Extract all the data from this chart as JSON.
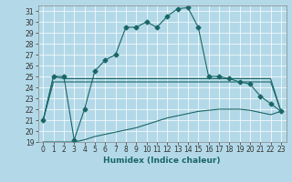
{
  "xlabel": "Humidex (Indice chaleur)",
  "ylabel": "",
  "bg_color": "#b3d9e8",
  "grid_color": "#ffffff",
  "line_color": "#1a6666",
  "xlim": [
    -0.5,
    23.5
  ],
  "ylim": [
    19,
    31.5
  ],
  "yticks": [
    19,
    20,
    21,
    22,
    23,
    24,
    25,
    26,
    27,
    28,
    29,
    30,
    31
  ],
  "xticks": [
    0,
    1,
    2,
    3,
    4,
    5,
    6,
    7,
    8,
    9,
    10,
    11,
    12,
    13,
    14,
    15,
    16,
    17,
    18,
    19,
    20,
    21,
    22,
    23
  ],
  "series": [
    {
      "x": [
        0,
        1,
        2,
        3,
        4,
        5,
        6,
        7,
        8,
        9,
        10,
        11,
        12,
        13,
        14,
        15,
        16,
        17,
        18,
        19,
        20,
        21,
        22,
        23
      ],
      "y": [
        21.0,
        25.0,
        25.0,
        19.2,
        22.0,
        25.5,
        26.5,
        27.0,
        29.5,
        29.5,
        30.0,
        29.5,
        30.5,
        31.2,
        31.3,
        29.5,
        25.0,
        25.0,
        24.8,
        24.5,
        24.3,
        23.2,
        22.5,
        21.8
      ],
      "marker": "D",
      "markersize": 2.5
    },
    {
      "x": [
        0,
        1,
        2,
        3,
        4,
        5,
        6,
        7,
        8,
        9,
        10,
        11,
        12,
        13,
        14,
        15,
        16,
        17,
        18,
        19,
        20,
        21,
        22,
        23
      ],
      "y": [
        21.0,
        25.0,
        24.8,
        24.8,
        24.8,
        24.8,
        24.8,
        24.8,
        24.8,
        24.8,
        24.8,
        24.8,
        24.8,
        24.8,
        24.8,
        24.8,
        24.8,
        24.8,
        24.8,
        24.8,
        24.8,
        24.8,
        24.8,
        21.8
      ],
      "marker": null,
      "markersize": 0
    },
    {
      "x": [
        0,
        1,
        2,
        3,
        4,
        5,
        6,
        7,
        8,
        9,
        10,
        11,
        12,
        13,
        14,
        15,
        16,
        17,
        18,
        19,
        20,
        21,
        22,
        23
      ],
      "y": [
        21.0,
        24.5,
        24.5,
        24.5,
        24.5,
        24.5,
        24.5,
        24.5,
        24.5,
        24.5,
        24.5,
        24.5,
        24.5,
        24.5,
        24.5,
        24.5,
        24.5,
        24.5,
        24.5,
        24.5,
        24.5,
        24.5,
        24.5,
        21.8
      ],
      "marker": null,
      "markersize": 0
    },
    {
      "x": [
        0,
        1,
        2,
        3,
        4,
        5,
        6,
        7,
        8,
        9,
        10,
        11,
        12,
        13,
        14,
        15,
        16,
        17,
        18,
        19,
        20,
        21,
        22,
        23
      ],
      "y": [
        19.0,
        19.0,
        19.0,
        19.0,
        19.2,
        19.5,
        19.7,
        19.9,
        20.1,
        20.3,
        20.6,
        20.9,
        21.2,
        21.4,
        21.6,
        21.8,
        21.9,
        22.0,
        22.0,
        22.0,
        21.9,
        21.7,
        21.5,
        21.8
      ],
      "marker": null,
      "markersize": 0
    }
  ],
  "tick_fontsize": 5.5,
  "label_fontsize": 6.5
}
